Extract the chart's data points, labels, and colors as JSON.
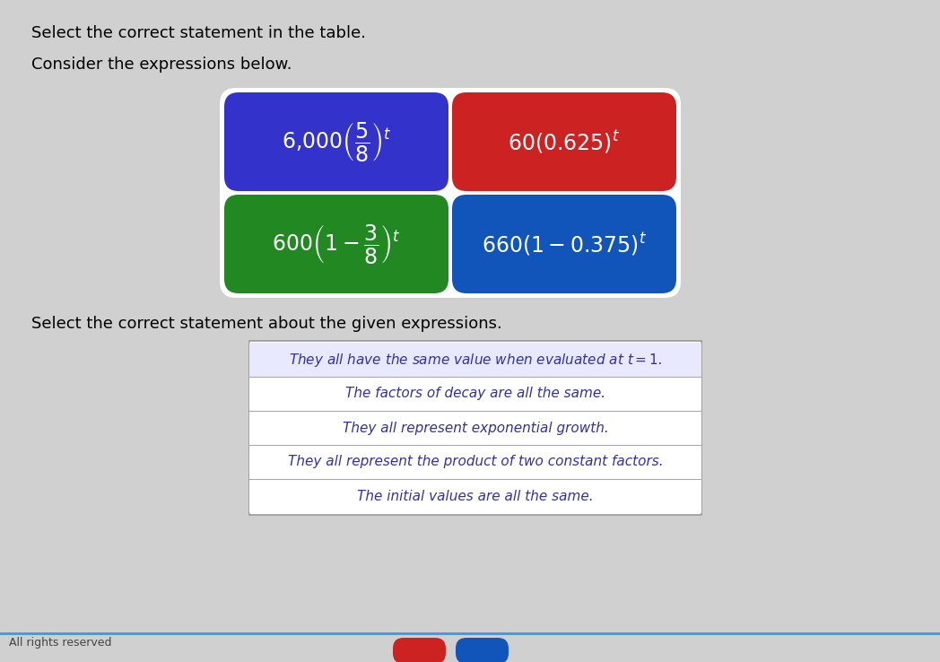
{
  "bg_color": "#d0d0d0",
  "title1": "Select the correct statement in the table.",
  "title2": "Consider the expressions below.",
  "title3": "Select the correct statement about the given expressions.",
  "footer": "All rights reserved",
  "cells": [
    {
      "color": "#3333cc",
      "expr": "$6{,}000\\left(\\dfrac{5}{8}\\right)^{t}$",
      "row": 0,
      "col": 0
    },
    {
      "color": "#cc2222",
      "expr": "$60(0.625)^{t}$",
      "row": 0,
      "col": 1
    },
    {
      "color": "#228822",
      "expr": "$600\\left(1-\\dfrac{3}{8}\\right)^{t}$",
      "row": 1,
      "col": 0
    },
    {
      "color": "#1155bb",
      "expr": "$660(1-0.375)^{t}$",
      "row": 1,
      "col": 1
    }
  ],
  "statements": [
    "They all have the same value when evaluated at $t=1$.",
    "The factors of decay are all the same.",
    "They all represent exponential growth.",
    "They all represent the product of two constant factors.",
    "The initial values are all the same."
  ],
  "highlighted_row": 0
}
